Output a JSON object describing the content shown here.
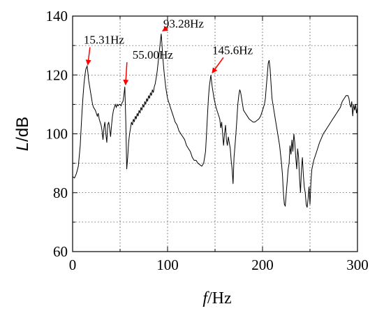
{
  "chart_data": {
    "type": "line",
    "xlabel_var": "f",
    "xlabel_unit": "/Hz",
    "ylabel_var": "L",
    "ylabel_unit": "/dB",
    "xlim": [
      0,
      300
    ],
    "ylim": [
      60,
      140
    ],
    "xticks": [
      0,
      100,
      200,
      300
    ],
    "yticks": [
      60,
      80,
      100,
      120,
      140
    ],
    "x_minor_ticks": [
      50,
      150,
      250
    ],
    "y_minor_ticks": [
      70,
      90,
      110,
      130
    ],
    "grid": true,
    "line_color": "#000000",
    "annotation_color": "#ff0000",
    "annotations": [
      {
        "text": "15.31Hz",
        "x": 15.31,
        "y": 123
      },
      {
        "text": "55.00Hz",
        "x": 55.0,
        "y": 116
      },
      {
        "text": "93.28Hz",
        "x": 93.28,
        "y": 134
      },
      {
        "text": "145.6Hz",
        "x": 145.6,
        "y": 120
      }
    ],
    "series": [
      {
        "points": [
          [
            0,
            85.5
          ],
          [
            2,
            85
          ],
          [
            4,
            86.5
          ],
          [
            6,
            89
          ],
          [
            8,
            96
          ],
          [
            9,
            102
          ],
          [
            10,
            108
          ],
          [
            11,
            113
          ],
          [
            12,
            117
          ],
          [
            13,
            120
          ],
          [
            14,
            122
          ],
          [
            15.31,
            123
          ],
          [
            16,
            121
          ],
          [
            17,
            118
          ],
          [
            18,
            116
          ],
          [
            19,
            114
          ],
          [
            20,
            112
          ],
          [
            21,
            110
          ],
          [
            22,
            109
          ],
          [
            23,
            108.5
          ],
          [
            24,
            108
          ],
          [
            25,
            107
          ],
          [
            26,
            106
          ],
          [
            27,
            107
          ],
          [
            28,
            105
          ],
          [
            29,
            104
          ],
          [
            30,
            103
          ],
          [
            31,
            101
          ],
          [
            32,
            98
          ],
          [
            33,
            102
          ],
          [
            34,
            104
          ],
          [
            35,
            100
          ],
          [
            36,
            97
          ],
          [
            37,
            103
          ],
          [
            38,
            104
          ],
          [
            39,
            102
          ],
          [
            40,
            99
          ],
          [
            41,
            103
          ],
          [
            42,
            106
          ],
          [
            43,
            108
          ],
          [
            44,
            109
          ],
          [
            45,
            110
          ],
          [
            46,
            109
          ],
          [
            47,
            110
          ],
          [
            48,
            109.5
          ],
          [
            49,
            110
          ],
          [
            50,
            110
          ],
          [
            51,
            109.5
          ],
          [
            52,
            110.5
          ],
          [
            53,
            111
          ],
          [
            54,
            113
          ],
          [
            55,
            116
          ],
          [
            56,
            104
          ],
          [
            57,
            88
          ],
          [
            58,
            92
          ],
          [
            59,
            97
          ],
          [
            60,
            100
          ],
          [
            61,
            102
          ],
          [
            62,
            104
          ],
          [
            63,
            103
          ],
          [
            64,
            105
          ],
          [
            65,
            104
          ],
          [
            66,
            106
          ],
          [
            67,
            105
          ],
          [
            68,
            107
          ],
          [
            69,
            106
          ],
          [
            70,
            108
          ],
          [
            71,
            107
          ],
          [
            72,
            109
          ],
          [
            73,
            108
          ],
          [
            74,
            110
          ],
          [
            75,
            109
          ],
          [
            76,
            111
          ],
          [
            77,
            110
          ],
          [
            78,
            112
          ],
          [
            79,
            111
          ],
          [
            80,
            113
          ],
          [
            81,
            112
          ],
          [
            82,
            114
          ],
          [
            83,
            113
          ],
          [
            84,
            115
          ],
          [
            85,
            114
          ],
          [
            86,
            116
          ],
          [
            87,
            117
          ],
          [
            88,
            119
          ],
          [
            89,
            121
          ],
          [
            90,
            124
          ],
          [
            91,
            127
          ],
          [
            92,
            130
          ],
          [
            93.28,
            134
          ],
          [
            94,
            131
          ],
          [
            95,
            126
          ],
          [
            96,
            122
          ],
          [
            97,
            119
          ],
          [
            98,
            116
          ],
          [
            99,
            114
          ],
          [
            100,
            112
          ],
          [
            102,
            110
          ],
          [
            104,
            108
          ],
          [
            106,
            106
          ],
          [
            108,
            104
          ],
          [
            110,
            103
          ],
          [
            112,
            101
          ],
          [
            114,
            100
          ],
          [
            116,
            99
          ],
          [
            118,
            98
          ],
          [
            120,
            96
          ],
          [
            122,
            95
          ],
          [
            124,
            94
          ],
          [
            126,
            92
          ],
          [
            128,
            91
          ],
          [
            130,
            91
          ],
          [
            132,
            90
          ],
          [
            134,
            89.5
          ],
          [
            136,
            89
          ],
          [
            138,
            90
          ],
          [
            140,
            94
          ],
          [
            141,
            100
          ],
          [
            142,
            106
          ],
          [
            143,
            112
          ],
          [
            144,
            116
          ],
          [
            145.6,
            120
          ],
          [
            147,
            116
          ],
          [
            149,
            112
          ],
          [
            151,
            109
          ],
          [
            153,
            107
          ],
          [
            155,
            105
          ],
          [
            156,
            102
          ],
          [
            157,
            104
          ],
          [
            158,
            100
          ],
          [
            159,
            96
          ],
          [
            160,
            100
          ],
          [
            161,
            103
          ],
          [
            162,
            98
          ],
          [
            163,
            96
          ],
          [
            164,
            99
          ],
          [
            165,
            97
          ],
          [
            166,
            95
          ],
          [
            167,
            91
          ],
          [
            168,
            88
          ],
          [
            169,
            83
          ],
          [
            170,
            92
          ],
          [
            171,
            96
          ],
          [
            172,
            100
          ],
          [
            173,
            105
          ],
          [
            174,
            110
          ],
          [
            175,
            113
          ],
          [
            176,
            115
          ],
          [
            177,
            114
          ],
          [
            178,
            112
          ],
          [
            179,
            110
          ],
          [
            180,
            108
          ],
          [
            182,
            107
          ],
          [
            184,
            106
          ],
          [
            186,
            105
          ],
          [
            188,
            104.5
          ],
          [
            190,
            104
          ],
          [
            192,
            104
          ],
          [
            194,
            104.5
          ],
          [
            196,
            105
          ],
          [
            198,
            106
          ],
          [
            200,
            108
          ],
          [
            202,
            110
          ],
          [
            203,
            112
          ],
          [
            204,
            116
          ],
          [
            205,
            120
          ],
          [
            206,
            124
          ],
          [
            207,
            125
          ],
          [
            208,
            122
          ],
          [
            209,
            117
          ],
          [
            210,
            112
          ],
          [
            212,
            108
          ],
          [
            214,
            104
          ],
          [
            216,
            100
          ],
          [
            218,
            96
          ],
          [
            220,
            90
          ],
          [
            221,
            86
          ],
          [
            222,
            80
          ],
          [
            223,
            76
          ],
          [
            224,
            75.5
          ],
          [
            225,
            80
          ],
          [
            226,
            84
          ],
          [
            227,
            88
          ],
          [
            228,
            90
          ],
          [
            229,
            96
          ],
          [
            230,
            93
          ],
          [
            231,
            98
          ],
          [
            232,
            94
          ],
          [
            233,
            100
          ],
          [
            234,
            97
          ],
          [
            235,
            92
          ],
          [
            236,
            88
          ],
          [
            237,
            95
          ],
          [
            238,
            92
          ],
          [
            239,
            85
          ],
          [
            240,
            80
          ],
          [
            241,
            88
          ],
          [
            242,
            92
          ],
          [
            243,
            86
          ],
          [
            244,
            82
          ],
          [
            245,
            80
          ],
          [
            246,
            76
          ],
          [
            247,
            75
          ],
          [
            248,
            78
          ],
          [
            249,
            82
          ],
          [
            250,
            76
          ],
          [
            251,
            84
          ],
          [
            252,
            88
          ],
          [
            254,
            91
          ],
          [
            256,
            93
          ],
          [
            258,
            95
          ],
          [
            260,
            97
          ],
          [
            262,
            98.5
          ],
          [
            264,
            100
          ],
          [
            266,
            101
          ],
          [
            268,
            102
          ],
          [
            270,
            103
          ],
          [
            272,
            104
          ],
          [
            274,
            105
          ],
          [
            276,
            106
          ],
          [
            278,
            107
          ],
          [
            280,
            108
          ],
          [
            282,
            109
          ],
          [
            284,
            111
          ],
          [
            286,
            112
          ],
          [
            288,
            113
          ],
          [
            290,
            113
          ],
          [
            291,
            112
          ],
          [
            292,
            110
          ],
          [
            293,
            109
          ],
          [
            294,
            111
          ],
          [
            295,
            106
          ],
          [
            296,
            110
          ],
          [
            297,
            108
          ],
          [
            298,
            110
          ],
          [
            299,
            107
          ],
          [
            300,
            109
          ]
        ]
      }
    ]
  }
}
